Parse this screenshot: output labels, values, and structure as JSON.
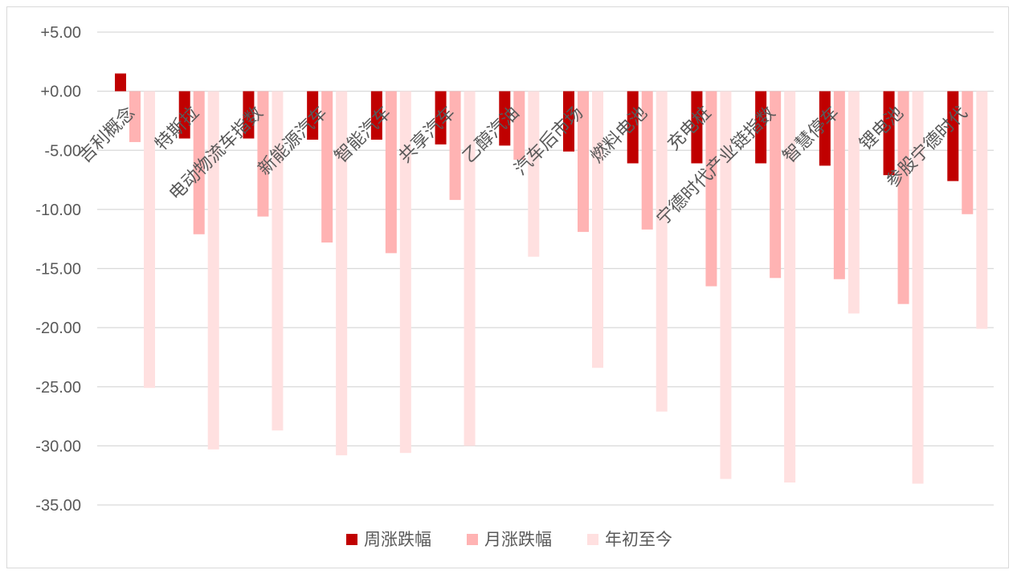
{
  "chart_data": {
    "type": "bar",
    "title": "",
    "xlabel": "",
    "ylabel": "",
    "ylim": [
      -35,
      5
    ],
    "yticks": [
      5,
      0,
      -5,
      -10,
      -15,
      -20,
      -25,
      -30,
      -35
    ],
    "ytick_labels": [
      "+5.00",
      "+0.00",
      "-5.00",
      "-10.00",
      "-15.00",
      "-20.00",
      "-25.00",
      "-30.00",
      "-35.00"
    ],
    "grid": true,
    "legend_position": "bottom",
    "categories": [
      "吉利概念",
      "特斯拉",
      "电动物流车指数",
      "新能源汽车",
      "智能汽车",
      "共享汽车",
      "乙醇汽油",
      "汽车后市场",
      "燃料电池",
      "充电桩",
      "宁德时代产业链指数",
      "智慧停车",
      "锂电池",
      "参股宁德时代"
    ],
    "series": [
      {
        "name": "周涨跌幅",
        "color": "#c00000",
        "values": [
          1.5,
          -4.0,
          -4.0,
          -4.1,
          -4.1,
          -4.5,
          -4.6,
          -5.1,
          -6.1,
          -6.1,
          -6.1,
          -6.3,
          -7.1,
          -7.6
        ]
      },
      {
        "name": "月涨跌幅",
        "color": "#ffb3b3",
        "values": [
          -4.3,
          -12.1,
          -10.6,
          -12.8,
          -13.7,
          -9.2,
          -5.8,
          -11.9,
          -11.7,
          -16.5,
          -15.8,
          -15.9,
          -18.0,
          -10.4
        ]
      },
      {
        "name": "年初至今",
        "color": "#ffe0e0",
        "values": [
          -25.1,
          -30.3,
          -28.7,
          -30.8,
          -30.6,
          -30.0,
          -14.0,
          -23.4,
          -27.1,
          -32.8,
          -33.1,
          -18.8,
          -33.2,
          -20.1
        ]
      }
    ]
  }
}
